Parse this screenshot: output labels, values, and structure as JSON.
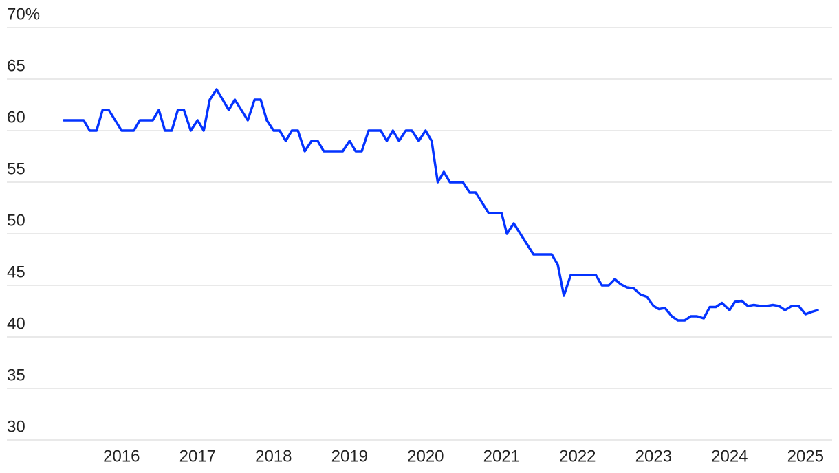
{
  "chart_data": {
    "type": "line",
    "x": [
      2015.24,
      2015.5,
      2015.58,
      2015.67,
      2015.75,
      2015.83,
      2016.0,
      2016.16,
      2016.24,
      2016.41,
      2016.49,
      2016.57,
      2016.66,
      2016.74,
      2016.82,
      2016.91,
      2017.0,
      2017.08,
      2017.16,
      2017.25,
      2017.41,
      2017.49,
      2017.66,
      2017.75,
      2017.83,
      2017.91,
      2018.0,
      2018.08,
      2018.16,
      2018.24,
      2018.32,
      2018.41,
      2018.5,
      2018.58,
      2018.66,
      2018.91,
      2019.0,
      2019.08,
      2019.16,
      2019.25,
      2019.41,
      2019.49,
      2019.57,
      2019.65,
      2019.74,
      2019.82,
      2019.91,
      2020.0,
      2020.08,
      2020.16,
      2020.24,
      2020.32,
      2020.49,
      2020.58,
      2020.66,
      2020.83,
      2021.0,
      2021.07,
      2021.16,
      2021.42,
      2021.66,
      2021.74,
      2021.82,
      2021.91,
      2022.24,
      2022.32,
      2022.41,
      2022.49,
      2022.57,
      2022.65,
      2022.74,
      2022.83,
      2022.91,
      2023.0,
      2023.07,
      2023.15,
      2023.24,
      2023.32,
      2023.41,
      2023.49,
      2023.57,
      2023.66,
      2023.74,
      2023.82,
      2023.9,
      2024.0,
      2024.07,
      2024.16,
      2024.24,
      2024.32,
      2024.41,
      2024.49,
      2024.57,
      2024.65,
      2024.73,
      2024.82,
      2024.91,
      2025.0,
      2025.07,
      2025.16
    ],
    "values": [
      61,
      61,
      60,
      60,
      62,
      62,
      60,
      60,
      61,
      61,
      62,
      60,
      60,
      62,
      62,
      60,
      61,
      60,
      63,
      64,
      62,
      63,
      61,
      63,
      63,
      61,
      60,
      60,
      59,
      60,
      60,
      58,
      59,
      59,
      58,
      58,
      59,
      58,
      58,
      60,
      60,
      59,
      60,
      59,
      60,
      60,
      59,
      60,
      59,
      55,
      56,
      55,
      55,
      54,
      54,
      52,
      52,
      50,
      51,
      48,
      48,
      47,
      44,
      46,
      46,
      45,
      45,
      45.6,
      45.1,
      44.8,
      44.7,
      44.1,
      43.9,
      43,
      42.7,
      42.8,
      42,
      41.6,
      41.6,
      42,
      42,
      41.8,
      42.9,
      42.9,
      43.3,
      42.6,
      43.4,
      43.5,
      43,
      43.1,
      43,
      43,
      43.1,
      43,
      42.6,
      43,
      43,
      42.2,
      42.4,
      42.6
    ],
    "color": "#0433ff",
    "xlim": [
      2014.49,
      2025.35
    ],
    "xticks": [
      2016,
      2017,
      2018,
      2019,
      2020,
      2021,
      2022,
      2023,
      2024,
      2025
    ],
    "ylim": [
      30,
      70
    ],
    "yticks": [
      30,
      35,
      40,
      45,
      50,
      55,
      60,
      65,
      {
        "value": 70,
        "label": "70%"
      }
    ],
    "grid": true
  }
}
